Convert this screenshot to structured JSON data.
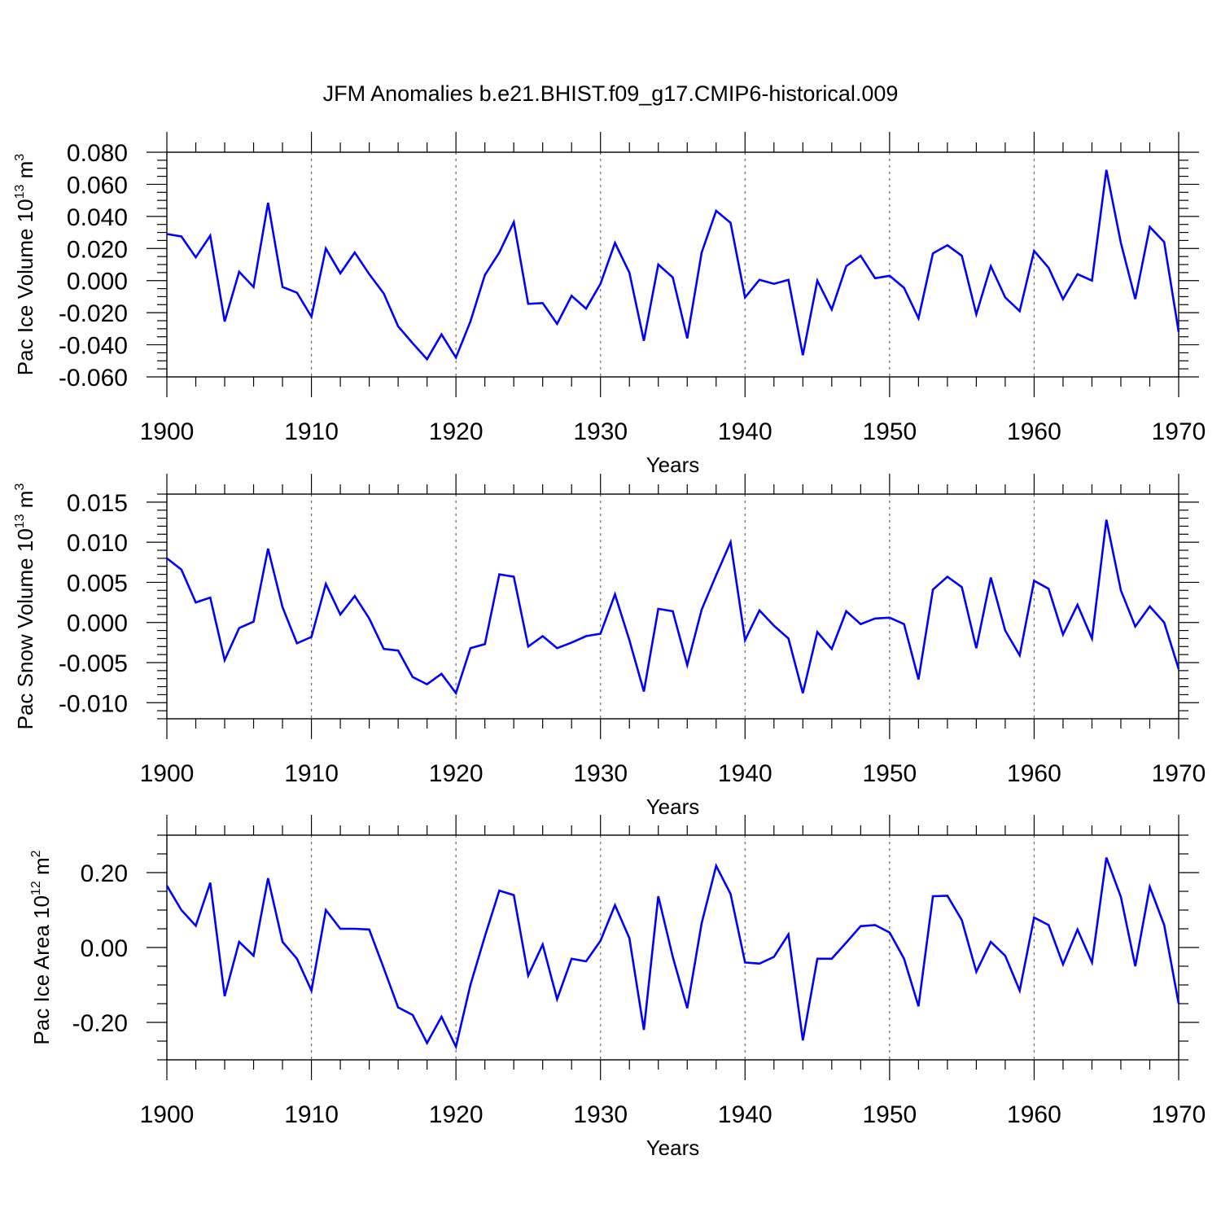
{
  "title": "JFM Anomalies b.e21.BHIST.f09_g17.CMIP6-historical.009",
  "chart_data": [
    {
      "type": "line",
      "ylabel": "Pac Ice Volume 10",
      "ylabel_exp": "13",
      "ylabel_unit": "m",
      "ylabel_unit_exp": "3",
      "xlabel": "Years",
      "xlim": [
        1900,
        1970
      ],
      "ylim": [
        -0.06,
        0.08
      ],
      "x_ticks": [
        1900,
        1910,
        1920,
        1930,
        1940,
        1950,
        1960,
        1970
      ],
      "y_ticks": [
        -0.06,
        -0.04,
        -0.02,
        0.0,
        0.02,
        0.04,
        0.06,
        0.08
      ],
      "y_tick_labels": [
        "-0.060",
        "-0.040",
        "-0.020",
        "0.000",
        "0.020",
        "0.040",
        "0.060",
        "0.080"
      ],
      "y_minor_step": 0.005,
      "grid": "vertical dashed at major x ticks",
      "color": "#0000ff",
      "x": [
        1900,
        1901,
        1902,
        1903,
        1904,
        1905,
        1906,
        1907,
        1908,
        1909,
        1910,
        1911,
        1912,
        1913,
        1914,
        1915,
        1916,
        1917,
        1918,
        1919,
        1920,
        1921,
        1922,
        1923,
        1924,
        1925,
        1926,
        1927,
        1928,
        1929,
        1930,
        1931,
        1932,
        1933,
        1934,
        1935,
        1936,
        1937,
        1938,
        1939,
        1940,
        1941,
        1942,
        1943,
        1944,
        1945,
        1946,
        1947,
        1948,
        1949,
        1950,
        1951,
        1952,
        1953,
        1954,
        1955,
        1956,
        1957,
        1958,
        1959,
        1960,
        1961,
        1962,
        1963,
        1964,
        1965,
        1966,
        1967,
        1968,
        1969,
        1970
      ],
      "values": [
        0.029,
        0.0275,
        0.0145,
        0.028,
        -0.0255,
        0.0055,
        -0.004,
        0.0485,
        -0.004,
        -0.0075,
        -0.0225,
        0.02,
        0.0045,
        0.0175,
        0.004,
        -0.008,
        -0.0285,
        -0.039,
        -0.049,
        -0.0335,
        -0.048,
        -0.0255,
        0.0035,
        0.0175,
        0.0365,
        -0.0145,
        -0.014,
        -0.027,
        -0.0095,
        -0.0175,
        -0.002,
        0.0235,
        0.005,
        -0.0375,
        0.01,
        0.002,
        -0.036,
        0.0175,
        0.0435,
        0.036,
        -0.0105,
        0.0005,
        -0.002,
        0.0005,
        -0.0465,
        0.0,
        -0.018,
        0.009,
        0.0155,
        0.0015,
        0.003,
        -0.0045,
        -0.0235,
        0.017,
        0.022,
        0.0155,
        -0.021,
        0.009,
        -0.0105,
        -0.019,
        0.0185,
        0.008,
        -0.0115,
        0.004,
        0.0,
        0.069,
        0.0235,
        -0.0115,
        0.0335,
        0.024,
        -0.032
      ]
    },
    {
      "type": "line",
      "ylabel": "Pac Snow Volume 10",
      "ylabel_exp": "13",
      "ylabel_unit": "m",
      "ylabel_unit_exp": "3",
      "xlabel": "Years",
      "xlim": [
        1900,
        1970
      ],
      "ylim": [
        -0.012,
        0.016
      ],
      "x_ticks": [
        1900,
        1910,
        1920,
        1930,
        1940,
        1950,
        1960,
        1970
      ],
      "y_ticks": [
        -0.01,
        -0.005,
        0.0,
        0.005,
        0.01,
        0.015
      ],
      "y_tick_labels": [
        "-0.010",
        "-0.005",
        "0.000",
        "0.005",
        "0.010",
        "0.015"
      ],
      "y_minor_step": 0.001,
      "grid": "vertical dashed at major x ticks",
      "color": "#0000ff",
      "x": [
        1900,
        1901,
        1902,
        1903,
        1904,
        1905,
        1906,
        1907,
        1908,
        1909,
        1910,
        1911,
        1912,
        1913,
        1914,
        1915,
        1916,
        1917,
        1918,
        1919,
        1920,
        1921,
        1922,
        1923,
        1924,
        1925,
        1926,
        1927,
        1928,
        1929,
        1930,
        1931,
        1932,
        1933,
        1934,
        1935,
        1936,
        1937,
        1938,
        1939,
        1940,
        1941,
        1942,
        1943,
        1944,
        1945,
        1946,
        1947,
        1948,
        1949,
        1950,
        1951,
        1952,
        1953,
        1954,
        1955,
        1956,
        1957,
        1958,
        1959,
        1960,
        1961,
        1962,
        1963,
        1964,
        1965,
        1966,
        1967,
        1968,
        1969,
        1970
      ],
      "values": [
        0.008,
        0.0066,
        0.0025,
        0.0031,
        -0.0047,
        -0.0007,
        0.0001,
        0.0092,
        0.0019,
        -0.0026,
        -0.0018,
        0.0048,
        0.001,
        0.0033,
        0.0005,
        -0.0033,
        -0.0035,
        -0.0068,
        -0.0077,
        -0.0064,
        -0.0088,
        -0.0032,
        -0.0027,
        0.006,
        0.0057,
        -0.003,
        -0.0017,
        -0.0032,
        -0.0025,
        -0.0017,
        -0.0014,
        0.0035,
        -0.0022,
        -0.0086,
        0.0017,
        0.0014,
        -0.0053,
        0.0016,
        0.0059,
        0.01,
        -0.0022,
        0.0015,
        -0.0004,
        -0.002,
        -0.0088,
        -0.0012,
        -0.0033,
        0.0014,
        -0.0002,
        0.0005,
        0.0006,
        -0.0002,
        -0.0071,
        0.0041,
        0.0057,
        0.0044,
        -0.0032,
        0.0056,
        -0.001,
        -0.0041,
        0.0052,
        0.0042,
        -0.0015,
        0.0022,
        -0.002,
        0.0128,
        0.004,
        -0.0005,
        0.002,
        0.0,
        -0.0058
      ]
    },
    {
      "type": "line",
      "ylabel": "Pac Ice Area 10",
      "ylabel_exp": "12",
      "ylabel_unit": "m",
      "ylabel_unit_exp": "2",
      "xlabel": "Years",
      "xlim": [
        1900,
        1970
      ],
      "ylim": [
        -0.3,
        0.3
      ],
      "x_ticks": [
        1900,
        1910,
        1920,
        1930,
        1940,
        1950,
        1960,
        1970
      ],
      "y_ticks": [
        -0.2,
        0.0,
        0.2
      ],
      "y_tick_labels": [
        "-0.20",
        "0.00",
        "0.20"
      ],
      "y_minor_step": 0.05,
      "grid": "vertical dashed at major x ticks",
      "color": "#0000ff",
      "x": [
        1900,
        1901,
        1902,
        1903,
        1904,
        1905,
        1906,
        1907,
        1908,
        1909,
        1910,
        1911,
        1912,
        1913,
        1914,
        1915,
        1916,
        1917,
        1918,
        1919,
        1920,
        1921,
        1922,
        1923,
        1924,
        1925,
        1926,
        1927,
        1928,
        1929,
        1930,
        1931,
        1932,
        1933,
        1934,
        1935,
        1936,
        1937,
        1938,
        1939,
        1940,
        1941,
        1942,
        1943,
        1944,
        1945,
        1946,
        1947,
        1948,
        1949,
        1950,
        1951,
        1952,
        1953,
        1954,
        1955,
        1956,
        1957,
        1958,
        1959,
        1960,
        1961,
        1962,
        1963,
        1964,
        1965,
        1966,
        1967,
        1968,
        1969,
        1970
      ],
      "values": [
        0.165,
        0.1,
        0.058,
        0.173,
        -0.13,
        0.015,
        -0.022,
        0.185,
        0.015,
        -0.03,
        -0.115,
        0.1,
        0.05,
        0.05,
        0.048,
        -0.055,
        -0.16,
        -0.18,
        -0.255,
        -0.185,
        -0.265,
        -0.1,
        0.03,
        0.152,
        0.14,
        -0.075,
        0.008,
        -0.138,
        -0.03,
        -0.037,
        0.018,
        0.113,
        0.025,
        -0.22,
        0.137,
        -0.025,
        -0.162,
        0.065,
        0.218,
        0.143,
        -0.04,
        -0.043,
        -0.025,
        0.035,
        -0.248,
        -0.03,
        -0.03,
        0.013,
        0.057,
        0.06,
        0.04,
        -0.03,
        -0.157,
        0.137,
        0.138,
        0.073,
        -0.065,
        0.015,
        -0.022,
        -0.115,
        0.08,
        0.06,
        -0.045,
        0.048,
        -0.04,
        0.24,
        0.135,
        -0.05,
        0.162,
        0.06,
        -0.15
      ]
    }
  ]
}
